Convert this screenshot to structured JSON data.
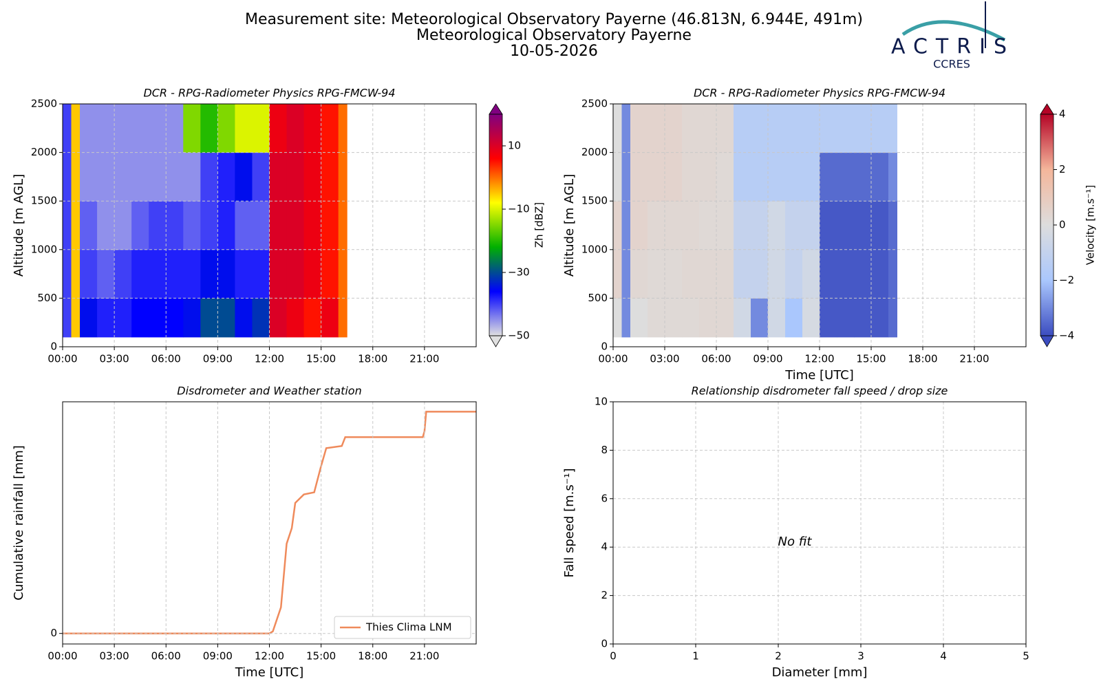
{
  "header": {
    "title_lines": [
      "Measurement site: Meteorological Observatory Payerne (46.813N, 6.944E, 491m)",
      "Meteorological Observatory Payerne",
      "10-05-2026"
    ],
    "logo": {
      "name": "ACTRIS",
      "subtitle": "CCRES"
    }
  },
  "chart_data": [
    {
      "type": "heatmap",
      "title": "DCR - RPG-Radiometer Physics RPG-FMCW-94",
      "ylabel": "Altitude [m AGL]",
      "x": [
        0,
        0.5,
        1,
        2,
        3,
        4,
        5,
        6,
        7,
        8,
        9,
        10,
        11,
        12,
        13,
        14,
        15,
        16,
        16.5
      ],
      "y": [
        100,
        500,
        1000,
        1500,
        2000,
        2500
      ],
      "values": [
        [
          -40,
          -40,
          -40,
          -40,
          -40
        ],
        [
          -5,
          -5,
          -5,
          -5,
          -5
        ],
        [
          -35,
          -40,
          -42,
          -45,
          -45
        ],
        [
          -38,
          -42,
          -45,
          -45,
          -45
        ],
        [
          -38,
          -40,
          -45,
          -45,
          -45
        ],
        [
          -36,
          -38,
          -42,
          -45,
          -45
        ],
        [
          -36,
          -38,
          -40,
          -45,
          -45
        ],
        [
          -36,
          -38,
          -40,
          -45,
          -45
        ],
        [
          -35,
          -38,
          -42,
          -45,
          -15
        ],
        [
          -30,
          -35,
          -40,
          -40,
          -20
        ],
        [
          -30,
          -35,
          -38,
          -38,
          -15
        ],
        [
          -35,
          -38,
          -42,
          -35,
          -10
        ],
        [
          -32,
          -38,
          -42,
          -40,
          -10
        ],
        [
          10,
          10,
          10,
          10,
          8
        ],
        [
          8,
          10,
          10,
          10,
          10
        ],
        [
          5,
          8,
          8,
          8,
          8
        ],
        [
          8,
          5,
          5,
          5,
          5
        ],
        [
          0,
          0,
          0,
          0,
          0
        ]
      ],
      "xlim": [
        0,
        24
      ],
      "xticks": [
        {
          "value": 0,
          "label": "00:00"
        },
        {
          "value": 3,
          "label": "03:00"
        },
        {
          "value": 6,
          "label": "06:00"
        },
        {
          "value": 9,
          "label": "09:00"
        },
        {
          "value": 12,
          "label": "12:00"
        },
        {
          "value": 15,
          "label": "15:00"
        },
        {
          "value": 18,
          "label": "18:00"
        },
        {
          "value": 21,
          "label": "21:00"
        }
      ],
      "ylim": [
        0,
        2500
      ],
      "yticks": [
        0,
        500,
        1000,
        1500,
        2000,
        2500
      ],
      "grid": true,
      "colorbar": {
        "label": "Zh [dBZ]",
        "lim": [
          -50,
          20
        ],
        "ticks": [
          {
            "value": -50,
            "label": "−50"
          },
          {
            "value": -30,
            "label": "−30"
          },
          {
            "value": -10,
            "label": "−10"
          },
          10
        ],
        "colors": [
          "#e0e0e0",
          "#0000ff",
          "#00b000",
          "#ffff00",
          "#ff0000",
          "#800080"
        ]
      }
    },
    {
      "type": "heatmap",
      "title": "DCR - RPG-Radiometer Physics RPG-FMCW-94",
      "ylabel": "Altitude [m AGL]",
      "xlabel": "Time [UTC]",
      "x": [
        0,
        0.5,
        1,
        2,
        3,
        4,
        5,
        6,
        7,
        8,
        9,
        10,
        11,
        12,
        13,
        14,
        15,
        16,
        16.5
      ],
      "y": [
        100,
        500,
        1000,
        1500,
        2000,
        2500
      ],
      "values": [
        [
          0,
          0.5,
          0.5,
          0,
          0
        ],
        [
          -3,
          -3,
          -3,
          -3,
          -3
        ],
        [
          0,
          0.3,
          0.5,
          0.5,
          0.5
        ],
        [
          0.2,
          0.2,
          0.3,
          0.5,
          0.5
        ],
        [
          0.2,
          0.2,
          0.3,
          0.5,
          0.5
        ],
        [
          0.2,
          0.3,
          0.3,
          0.3,
          0.3
        ],
        [
          0.3,
          0.3,
          0.2,
          0.3,
          0.3
        ],
        [
          0.3,
          0.3,
          0.2,
          0.2,
          0.3
        ],
        [
          -0.5,
          -1,
          -1,
          -1.5,
          -1.5
        ],
        [
          -3,
          -1,
          -1,
          -1.5,
          -1.5
        ],
        [
          -0.5,
          -0.5,
          -0.5,
          -1.5,
          -1.5
        ],
        [
          -2,
          -1,
          -1,
          -1.5,
          -1.5
        ],
        [
          -0.3,
          -0.5,
          -1,
          -1.5,
          -1.5
        ],
        [
          -3.8,
          -3.8,
          -3.8,
          -3.5,
          -1.5
        ],
        [
          -3.8,
          -3.8,
          -3.8,
          -3.5,
          -1.5
        ],
        [
          -3.8,
          -3.8,
          -3.8,
          -3.5,
          -1.5
        ],
        [
          -3.8,
          -3.8,
          -3.8,
          -3.5,
          -1.5
        ],
        [
          -3.5,
          -3.5,
          -3.5,
          -3,
          -1.5
        ]
      ],
      "xlim": [
        0,
        24
      ],
      "xticks": [
        {
          "value": 0,
          "label": "00:00"
        },
        {
          "value": 3,
          "label": "03:00"
        },
        {
          "value": 6,
          "label": "06:00"
        },
        {
          "value": 9,
          "label": "09:00"
        },
        {
          "value": 12,
          "label": "12:00"
        },
        {
          "value": 15,
          "label": "15:00"
        },
        {
          "value": 18,
          "label": "18:00"
        },
        {
          "value": 21,
          "label": "21:00"
        }
      ],
      "ylim": [
        0,
        2500
      ],
      "yticks": [
        0,
        500,
        1000,
        1500,
        2000,
        2500
      ],
      "grid": true,
      "colorbar": {
        "label": "Velocity [m.s⁻¹]",
        "lim": [
          -4,
          4
        ],
        "ticks": [
          {
            "value": -4,
            "label": "−4"
          },
          {
            "value": -2,
            "label": "−2"
          },
          0,
          2,
          4
        ],
        "colors": [
          "#3b4cc0",
          "#aac7fd",
          "#dddddd",
          "#f4b69b",
          "#b40426"
        ]
      }
    },
    {
      "type": "line",
      "title": "Disdrometer and Weather station",
      "ylabel": "Cumulative rainfall [mm]",
      "xlabel": "Time [UTC]",
      "x": [
        0,
        12,
        12.2,
        12.67,
        13,
        13.3,
        13.5,
        14,
        14.6,
        15,
        15.3,
        16.2,
        16.4,
        20.9,
        21,
        21.1,
        24
      ],
      "series": [
        {
          "name": "Thies Clima LNM",
          "color": "#ef8a5b",
          "values": [
            0,
            0,
            0.01,
            0.124,
            0.426,
            0.5,
            0.62,
            0.66,
            0.67,
            0.795,
            0.88,
            0.89,
            0.932,
            0.932,
            0.96,
            1.053,
            1.053
          ]
        }
      ],
      "xlim": [
        0,
        24
      ],
      "xticks": [
        {
          "value": 0,
          "label": "00:00"
        },
        {
          "value": 3,
          "label": "03:00"
        },
        {
          "value": 6,
          "label": "06:00"
        },
        {
          "value": 9,
          "label": "09:00"
        },
        {
          "value": 12,
          "label": "12:00"
        },
        {
          "value": 15,
          "label": "15:00"
        },
        {
          "value": 18,
          "label": "18:00"
        },
        {
          "value": 21,
          "label": "21:00"
        }
      ],
      "ylim": [
        -0.05,
        1.1
      ],
      "yticks": [
        0
      ],
      "grid": true,
      "legend": "lower right"
    },
    {
      "type": "scatter",
      "title": "Relationship disdrometer fall speed / drop size",
      "ylabel": "Fall speed [m.s⁻¹]",
      "xlabel": "Diameter [mm]",
      "annotation": "No fit",
      "xlim": [
        0,
        5
      ],
      "xticks": [
        0,
        1,
        2,
        3,
        4,
        5
      ],
      "ylim": [
        0,
        10
      ],
      "yticks": [
        0,
        2,
        4,
        6,
        8,
        10
      ],
      "grid": true
    }
  ]
}
